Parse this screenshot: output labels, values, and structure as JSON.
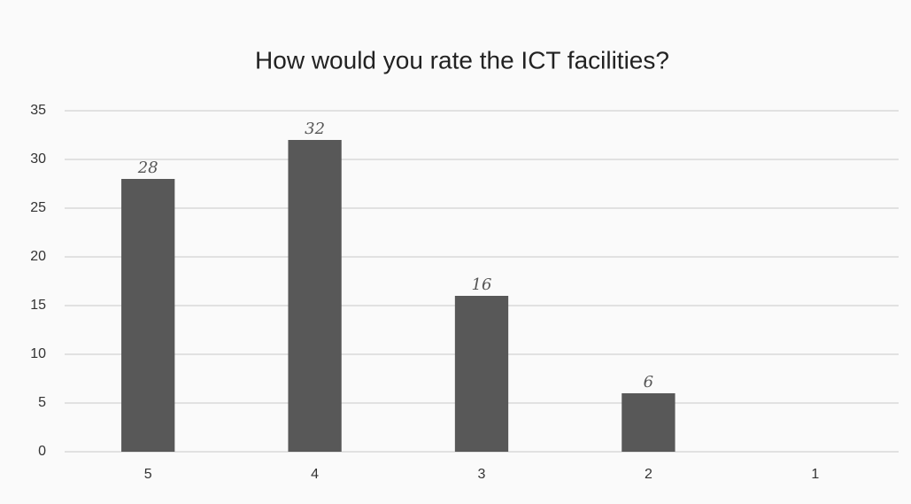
{
  "chart_data": {
    "type": "bar",
    "title": "How would you rate the ICT facilities?",
    "categories": [
      "5",
      "4",
      "3",
      "2",
      "1"
    ],
    "values": [
      28,
      32,
      16,
      6,
      0
    ],
    "color": "#585858",
    "ylim": [
      0,
      35
    ],
    "yticks": [
      0,
      5,
      10,
      15,
      20,
      25,
      30,
      35
    ],
    "grid": true
  }
}
